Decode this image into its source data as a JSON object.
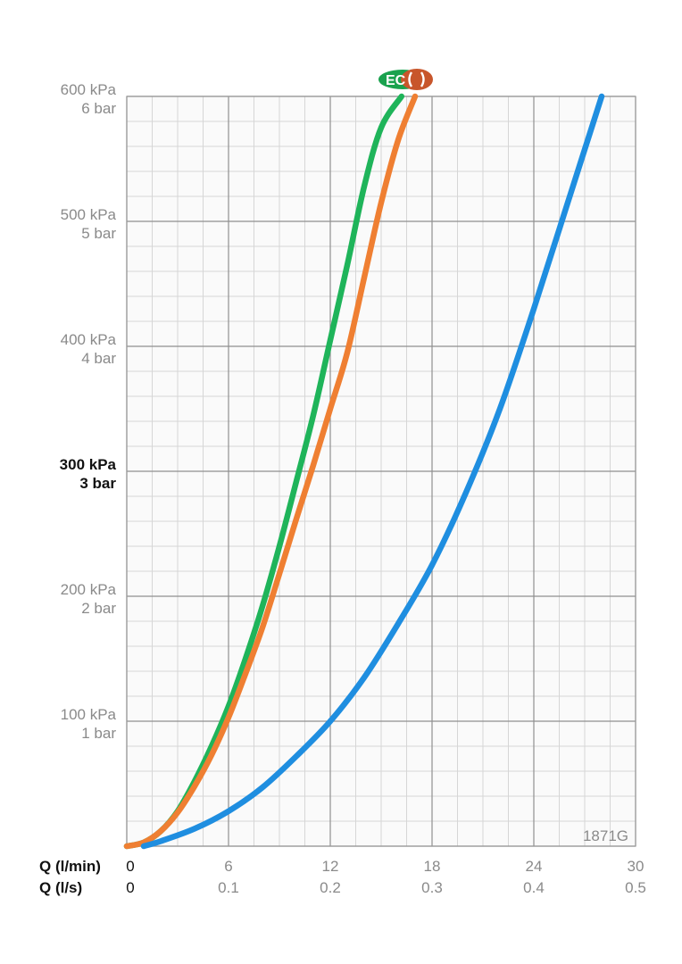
{
  "chart_data": {
    "type": "line",
    "title": "",
    "product_code": "1871G",
    "logo_text": "EC",
    "x_axis": {
      "primary_label": "Q (l/min)",
      "secondary_label": "Q (l/s)",
      "range": [
        0,
        30
      ],
      "ticks": [
        0,
        6,
        12,
        18,
        24,
        30
      ],
      "primary_tick_labels": [
        "0",
        "6",
        "12",
        "18",
        "24",
        "30"
      ],
      "secondary_tick_labels": [
        "0",
        "0.1",
        "0.2",
        "0.3",
        "0.4",
        "0.5"
      ],
      "minor_step": 1.5
    },
    "y_axis": {
      "range": [
        0,
        600
      ],
      "ticks": [
        0,
        100,
        200,
        300,
        400,
        500,
        600
      ],
      "tick_labels": [
        {
          "value": 100,
          "kpa": "100 kPa",
          "bar": "1 bar",
          "emphasis": false
        },
        {
          "value": 200,
          "kpa": "200 kPa",
          "bar": "2 bar",
          "emphasis": false
        },
        {
          "value": 300,
          "kpa": "300 kPa",
          "bar": "3 bar",
          "emphasis": true
        },
        {
          "value": 400,
          "kpa": "400 kPa",
          "bar": "4 bar",
          "emphasis": false
        },
        {
          "value": 500,
          "kpa": "500 kPa",
          "bar": "5 bar",
          "emphasis": false
        },
        {
          "value": 600,
          "kpa": "600 kPa",
          "bar": "6 bar",
          "emphasis": false
        }
      ],
      "minor_step": 20
    },
    "grid": true,
    "legend": "none",
    "series": [
      {
        "color": "#1fb45a",
        "x": [
          0,
          1,
          2,
          3,
          4,
          5,
          6,
          7,
          8,
          9,
          10,
          11,
          12,
          13,
          14,
          15,
          16.2
        ],
        "y": [
          0,
          3,
          12,
          28,
          52,
          80,
          112,
          150,
          192,
          240,
          292,
          345,
          405,
          465,
          528,
          575,
          600
        ]
      },
      {
        "color": "#ef7f32",
        "x": [
          0,
          1,
          2,
          3,
          4,
          5,
          6,
          7,
          8,
          9,
          10,
          11,
          12,
          13,
          14,
          15,
          16,
          17
        ],
        "y": [
          0,
          3,
          12,
          27,
          48,
          73,
          103,
          138,
          175,
          218,
          262,
          305,
          350,
          395,
          455,
          515,
          565,
          600
        ]
      },
      {
        "color": "#1f8ee0",
        "x": [
          1,
          2,
          4,
          6,
          8,
          10,
          12,
          14,
          16,
          18,
          20,
          22,
          24,
          26,
          28
        ],
        "y": [
          0,
          4,
          14,
          28,
          47,
          72,
          100,
          135,
          178,
          225,
          283,
          350,
          430,
          515,
          600
        ]
      }
    ]
  }
}
